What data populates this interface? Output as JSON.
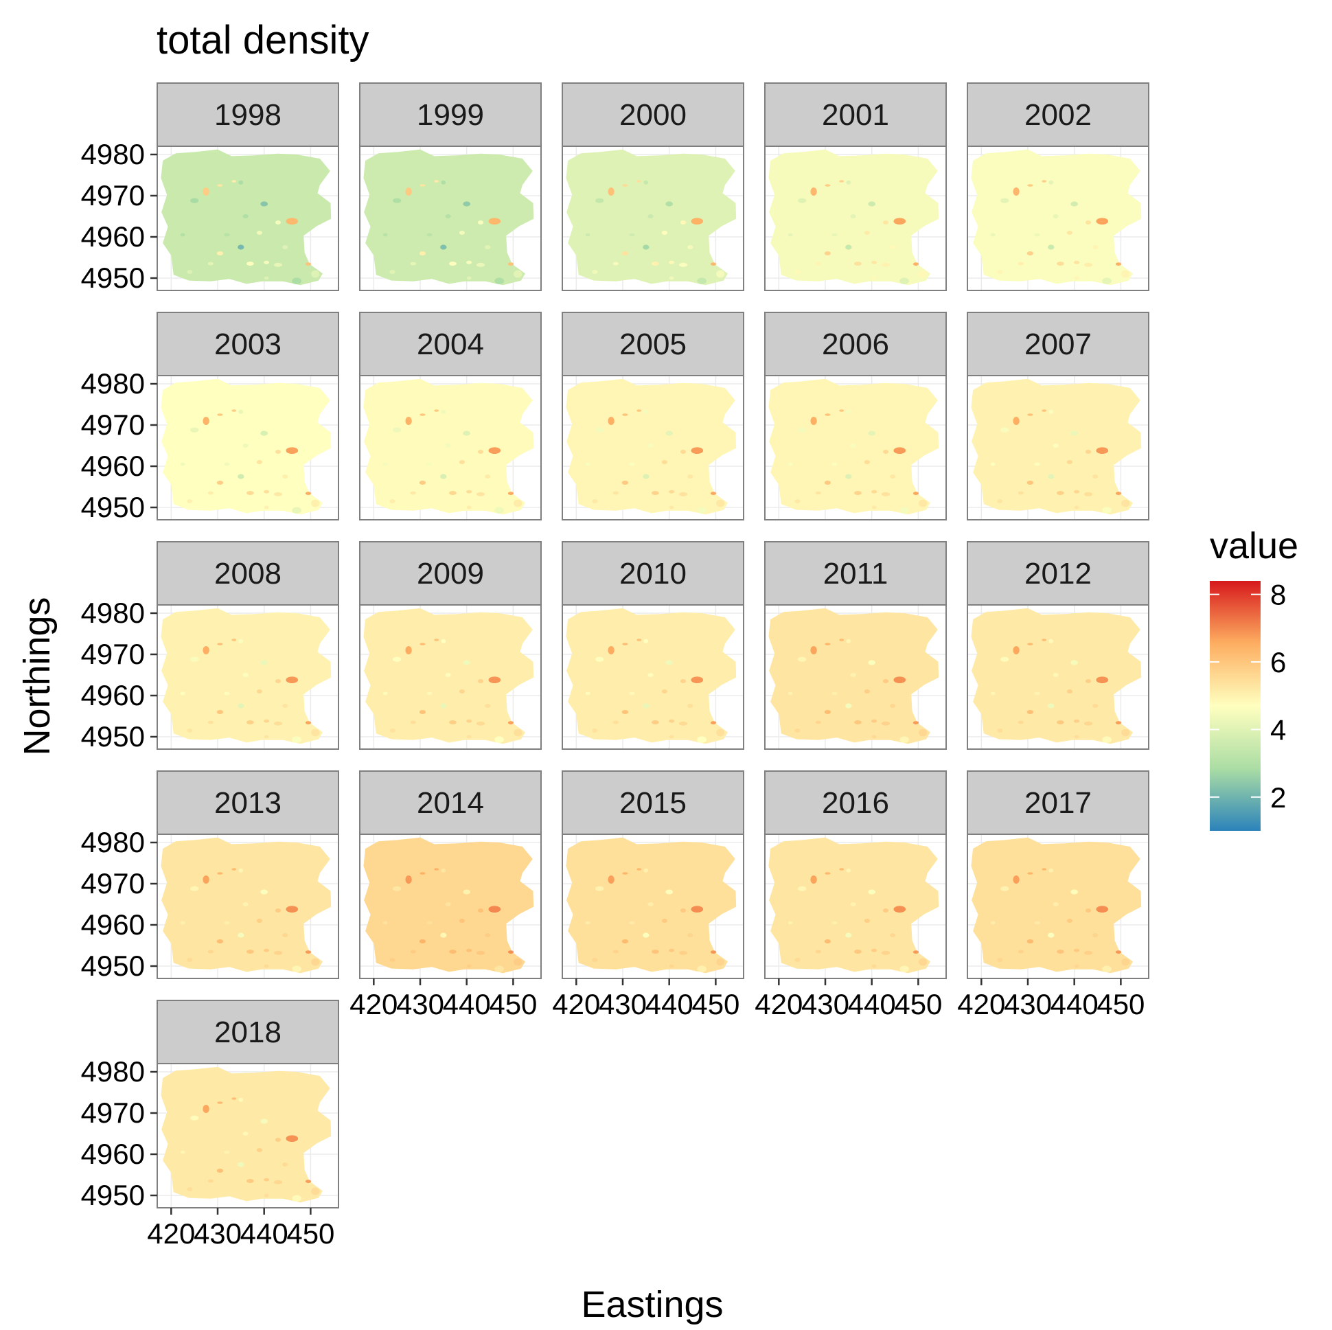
{
  "chart_data": {
    "type": "heatmap",
    "subtype": "faceted spatial raster map",
    "title": "total density",
    "xlabel": "Eastings",
    "ylabel": "Northings",
    "facets": [
      "1998",
      "1999",
      "2000",
      "2001",
      "2002",
      "2003",
      "2004",
      "2005",
      "2006",
      "2007",
      "2008",
      "2009",
      "2010",
      "2011",
      "2012",
      "2013",
      "2014",
      "2015",
      "2016",
      "2017",
      "2018"
    ],
    "facet_base_values": [
      3.5,
      3.6,
      4.0,
      4.5,
      4.6,
      4.7,
      4.8,
      4.9,
      4.9,
      5.0,
      5.0,
      5.1,
      5.1,
      5.3,
      5.2,
      5.3,
      5.6,
      5.4,
      5.3,
      5.4,
      5.2
    ],
    "x_ticks": [
      "420",
      "430",
      "440",
      "450"
    ],
    "x_tick_values": [
      420,
      430,
      440,
      450
    ],
    "xlim": [
      417,
      456
    ],
    "y_ticks": [
      "4950",
      "4960",
      "4970",
      "4980"
    ],
    "y_tick_values": [
      4950,
      4960,
      4970,
      4980
    ],
    "ylim": [
      4947,
      4982
    ],
    "grid": true,
    "legend": {
      "title": "value",
      "position": "right",
      "ticks": [
        "2",
        "4",
        "6",
        "8"
      ],
      "tick_values": [
        2,
        4,
        6,
        8
      ],
      "range": [
        1,
        8.4
      ],
      "palette": [
        "#2b83ba",
        "#abdda4",
        "#ffffbf",
        "#fdae61",
        "#d7191c"
      ]
    },
    "colors": {
      "strip_background": "#cccccc",
      "panel_border": "#7f7f7f",
      "grid": "#ebebeb"
    }
  }
}
